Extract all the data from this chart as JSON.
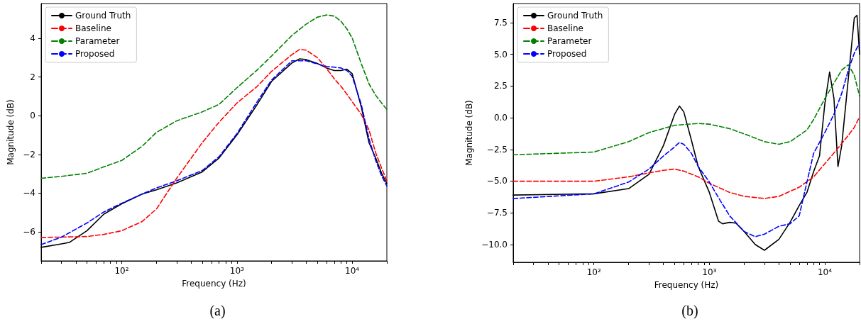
{
  "chart_data": [
    {
      "type": "line",
      "title": "(a)",
      "xlabel": "Frequency (Hz)",
      "ylabel": "Magnitude (dB)",
      "log": "x",
      "grid": false,
      "legend": "top left",
      "marker": "none",
      "xlim": [
        20,
        20000
      ],
      "ylim": [
        -7.5,
        5.8
      ],
      "xticks": [
        {
          "value": 20,
          "label": null
        },
        {
          "value": 30,
          "label": null
        },
        {
          "value": 40,
          "label": null
        },
        {
          "value": 50,
          "label": null
        },
        {
          "value": 60,
          "label": null
        },
        {
          "value": 70,
          "label": null
        },
        {
          "value": 80,
          "label": null
        },
        {
          "value": 90,
          "label": null
        },
        {
          "value": 100,
          "label": "10²"
        },
        {
          "value": 200,
          "label": null
        },
        {
          "value": 300,
          "label": null
        },
        {
          "value": 400,
          "label": null
        },
        {
          "value": 500,
          "label": null
        },
        {
          "value": 600,
          "label": null
        },
        {
          "value": 700,
          "label": null
        },
        {
          "value": 800,
          "label": null
        },
        {
          "value": 900,
          "label": null
        },
        {
          "value": 1000,
          "label": "10³"
        },
        {
          "value": 2000,
          "label": null
        },
        {
          "value": 3000,
          "label": null
        },
        {
          "value": 4000,
          "label": null
        },
        {
          "value": 5000,
          "label": null
        },
        {
          "value": 6000,
          "label": null
        },
        {
          "value": 7000,
          "label": null
        },
        {
          "value": 8000,
          "label": null
        },
        {
          "value": 9000,
          "label": null
        },
        {
          "value": 10000,
          "label": "10⁴"
        },
        {
          "value": 20000,
          "label": null
        }
      ],
      "yticks": [
        {
          "value": -6,
          "label": "−6"
        },
        {
          "value": -4,
          "label": "−4"
        },
        {
          "value": -2,
          "label": "−2"
        },
        0,
        2,
        4
      ],
      "series": [
        {
          "name": "Ground Truth",
          "color": "#000000",
          "line_style": "solid",
          "x": [
            20,
            30,
            35,
            50,
            70,
            100,
            150,
            200,
            300,
            500,
            700,
            1000,
            1500,
            2000,
            3000,
            3500,
            4000,
            5000,
            6000,
            7000,
            8000,
            9000,
            10000,
            12000,
            14000,
            16000,
            18000,
            20000
          ],
          "values": [
            -6.8,
            -6.62,
            -6.55,
            -5.94,
            -5.08,
            -4.55,
            -4.05,
            -3.83,
            -3.47,
            -2.9,
            -2.18,
            -0.99,
            0.59,
            1.78,
            2.73,
            2.94,
            2.9,
            2.7,
            2.47,
            2.34,
            2.34,
            2.41,
            2.18,
            0.46,
            -1.39,
            -2.18,
            -2.97,
            -3.5
          ]
        },
        {
          "name": "Baseline",
          "color": "#ff0000",
          "line_style": "dashed",
          "x": [
            20,
            50,
            70,
            100,
            150,
            200,
            300,
            500,
            700,
            1000,
            1500,
            2000,
            3000,
            3500,
            4000,
            5000,
            6000,
            7000,
            8000,
            9000,
            10000,
            12000,
            14000,
            16000,
            18000,
            20000
          ],
          "values": [
            -6.29,
            -6.24,
            -6.13,
            -5.94,
            -5.47,
            -4.82,
            -3.23,
            -1.39,
            -0.33,
            0.66,
            1.52,
            2.3,
            3.16,
            3.43,
            3.39,
            3.0,
            2.44,
            1.91,
            1.52,
            1.12,
            0.73,
            0.07,
            -0.73,
            -1.91,
            -2.7,
            -3.36
          ]
        },
        {
          "name": "Parameter",
          "color": "#008000",
          "line_style": "dashed",
          "x": [
            20,
            30,
            50,
            70,
            100,
            150,
            200,
            300,
            500,
            700,
            1000,
            1500,
            2000,
            3000,
            4000,
            5000,
            6000,
            7000,
            8000,
            9000,
            10000,
            12000,
            14000,
            16000,
            18000,
            20000
          ],
          "values": [
            -3.23,
            -3.13,
            -2.97,
            -2.64,
            -2.31,
            -1.58,
            -0.86,
            -0.26,
            0.2,
            0.59,
            1.45,
            2.37,
            3.09,
            4.15,
            4.74,
            5.1,
            5.21,
            5.15,
            4.88,
            4.49,
            4.02,
            2.7,
            1.65,
            1.06,
            0.66,
            0.33
          ]
        },
        {
          "name": "Proposed",
          "color": "#0000ff",
          "line_style": "dashed",
          "x": [
            20,
            30,
            50,
            70,
            100,
            150,
            200,
            300,
            500,
            700,
            1000,
            1500,
            2000,
            3000,
            4000,
            5000,
            6000,
            7000,
            8000,
            9000,
            10000,
            12000,
            14000,
            16000,
            18000,
            20000
          ],
          "values": [
            -6.66,
            -6.27,
            -5.54,
            -4.97,
            -4.52,
            -4.05,
            -3.73,
            -3.36,
            -2.83,
            -2.11,
            -0.92,
            0.73,
            1.85,
            2.84,
            2.84,
            2.68,
            2.55,
            2.51,
            2.47,
            2.34,
            2.04,
            0.59,
            -1.19,
            -2.31,
            -3.1,
            -3.63
          ]
        }
      ]
    },
    {
      "type": "line",
      "title": "(b)",
      "xlabel": "Frequency (Hz)",
      "ylabel": "Magnitude (dB)",
      "log": "x",
      "grid": false,
      "legend": "top left",
      "marker": "none",
      "xlim": [
        20,
        20000
      ],
      "ylim": [
        -11.4,
        9.0
      ],
      "xticks": [
        {
          "value": 20,
          "label": null
        },
        {
          "value": 30,
          "label": null
        },
        {
          "value": 40,
          "label": null
        },
        {
          "value": 50,
          "label": null
        },
        {
          "value": 60,
          "label": null
        },
        {
          "value": 70,
          "label": null
        },
        {
          "value": 80,
          "label": null
        },
        {
          "value": 90,
          "label": null
        },
        {
          "value": 100,
          "label": "10²"
        },
        {
          "value": 200,
          "label": null
        },
        {
          "value": 300,
          "label": null
        },
        {
          "value": 400,
          "label": null
        },
        {
          "value": 500,
          "label": null
        },
        {
          "value": 600,
          "label": null
        },
        {
          "value": 700,
          "label": null
        },
        {
          "value": 800,
          "label": null
        },
        {
          "value": 900,
          "label": null
        },
        {
          "value": 1000,
          "label": "10³"
        },
        {
          "value": 2000,
          "label": null
        },
        {
          "value": 3000,
          "label": null
        },
        {
          "value": 4000,
          "label": null
        },
        {
          "value": 5000,
          "label": null
        },
        {
          "value": 6000,
          "label": null
        },
        {
          "value": 7000,
          "label": null
        },
        {
          "value": 8000,
          "label": null
        },
        {
          "value": 9000,
          "label": null
        },
        {
          "value": 10000,
          "label": "10⁴"
        },
        {
          "value": 20000,
          "label": null
        }
      ],
      "yticks": [
        {
          "value": -10,
          "label": "−10.0"
        },
        {
          "value": -7.5,
          "label": "−7.5"
        },
        {
          "value": -5,
          "label": "−5.0"
        },
        {
          "value": -2.5,
          "label": "−2.5"
        },
        {
          "value": 0,
          "label": "0.0"
        },
        {
          "value": 2.5,
          "label": "2.5"
        },
        {
          "value": 5,
          "label": "5.0"
        },
        {
          "value": 7.5,
          "label": "7.5"
        }
      ],
      "series": [
        {
          "name": "Ground Truth",
          "color": "#000000",
          "line_style": "solid",
          "x": [
            20,
            100,
            200,
            300,
            400,
            500,
            550,
            600,
            700,
            800,
            1000,
            1200,
            1300,
            1500,
            1700,
            2000,
            2500,
            3000,
            4000,
            5000,
            6000,
            7000,
            8000,
            9000,
            10000,
            11000,
            12000,
            13000,
            14000,
            16000,
            18000,
            19000,
            20000
          ],
          "values": [
            -6.1,
            -6.0,
            -5.59,
            -4.46,
            -2.2,
            0.27,
            0.92,
            0.47,
            -1.79,
            -3.84,
            -5.89,
            -8.15,
            -8.36,
            -8.25,
            -8.31,
            -8.97,
            -10.0,
            -10.45,
            -9.59,
            -8.25,
            -6.92,
            -5.89,
            -4.25,
            -3.0,
            1.09,
            3.6,
            1.5,
            -3.85,
            -2.2,
            3.14,
            7.87,
            8.07,
            5.0
          ]
        },
        {
          "name": "Baseline",
          "color": "#ff0000",
          "line_style": "dashed",
          "x": [
            20,
            100,
            200,
            300,
            400,
            500,
            600,
            800,
            1000,
            1500,
            2000,
            3000,
            4000,
            6000,
            8000,
            10000,
            13000,
            16000,
            18000,
            20000
          ],
          "values": [
            -5.01,
            -5.01,
            -4.66,
            -4.35,
            -4.15,
            -4.05,
            -4.21,
            -4.66,
            -5.17,
            -5.89,
            -6.2,
            -6.37,
            -6.2,
            -5.48,
            -4.66,
            -3.63,
            -2.4,
            -1.38,
            -0.76,
            0.06
          ]
        },
        {
          "name": "Parameter",
          "color": "#008000",
          "line_style": "dashed",
          "x": [
            20,
            100,
            200,
            300,
            500,
            800,
            1000,
            1500,
            2000,
            3000,
            4000,
            5000,
            7000,
            8000,
            10000,
            12000,
            14000,
            16000,
            18000,
            20000
          ],
          "values": [
            -2.92,
            -2.71,
            -1.89,
            -1.17,
            -0.6,
            -0.45,
            -0.51,
            -0.86,
            -1.27,
            -1.89,
            -2.09,
            -1.89,
            -0.97,
            -0.14,
            1.5,
            2.73,
            3.76,
            4.17,
            3.35,
            1.7
          ]
        },
        {
          "name": "Proposed",
          "color": "#0000ff",
          "line_style": "dashed",
          "x": [
            20,
            100,
            200,
            300,
            400,
            500,
            550,
            600,
            700,
            800,
            1000,
            1200,
            1500,
            2000,
            2500,
            3000,
            4000,
            5000,
            6000,
            7000,
            8000,
            10000,
            12000,
            14000,
            16000,
            18000,
            20000
          ],
          "values": [
            -6.37,
            -6.0,
            -5.07,
            -4.05,
            -3.02,
            -2.3,
            -1.95,
            -2.09,
            -2.81,
            -3.84,
            -5.07,
            -6.3,
            -7.74,
            -8.97,
            -9.38,
            -9.18,
            -8.56,
            -8.36,
            -7.74,
            -5.07,
            -2.81,
            -1.17,
            0.27,
            1.91,
            3.76,
            5.09,
            5.91
          ]
        }
      ]
    }
  ]
}
